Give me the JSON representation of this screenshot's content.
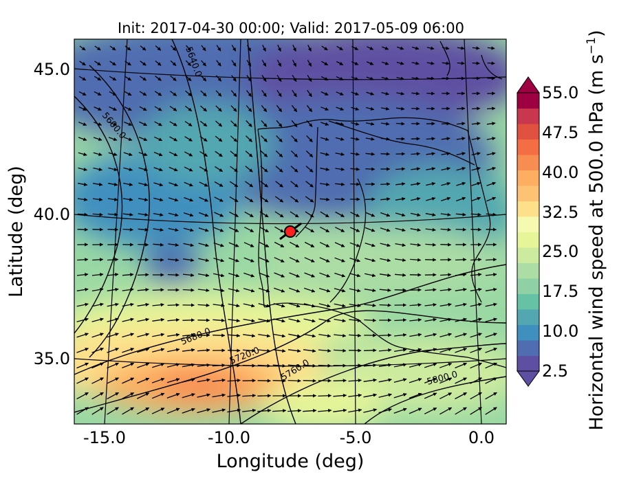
{
  "map": {
    "title": "Init: 2017-04-30 00:00; Valid: 2017-05-09 06:00",
    "xlabel": "Longitude (deg)",
    "ylabel": "Latitude (deg)",
    "x_ticks": [
      "-15.0",
      "-10.0",
      "-5.0",
      "0.0"
    ],
    "y_ticks": [
      "45.0",
      "40.0",
      "35.0"
    ],
    "lon_range": [
      -16,
      0.3
    ],
    "lat_range": [
      32.7,
      46.2
    ],
    "marker": {
      "lon": -7.6,
      "lat": 39.3,
      "color": "#ff2020"
    },
    "contour_labels": [
      "5640.0",
      "5600.0",
      "5680.0",
      "5720.0",
      "5760.0",
      "5800.0"
    ]
  },
  "colorbar": {
    "label_main": "Horizontal wind speed at 500.0 hPa (m s",
    "label_sup": "−1",
    "label_tail": ")",
    "ticks": [
      "55.0",
      "47.5",
      "40.0",
      "32.5",
      "25.0",
      "17.5",
      "10.0",
      "2.5"
    ],
    "range": [
      2.5,
      55.0
    ],
    "colors": [
      "#5e4fa2",
      "#4f6db0",
      "#3f8fbf",
      "#52a7b0",
      "#66c2a5",
      "#8fd1a4",
      "#abdda4",
      "#cdeb9e",
      "#e6f598",
      "#f6fab0",
      "#fee08b",
      "#fdc274",
      "#fdae61",
      "#f88d52",
      "#f46d43",
      "#e0513f",
      "#c8374d",
      "#9e0142"
    ],
    "extend_top_color": "#9e0142",
    "extend_bottom_color": "#5e4fa2"
  }
}
